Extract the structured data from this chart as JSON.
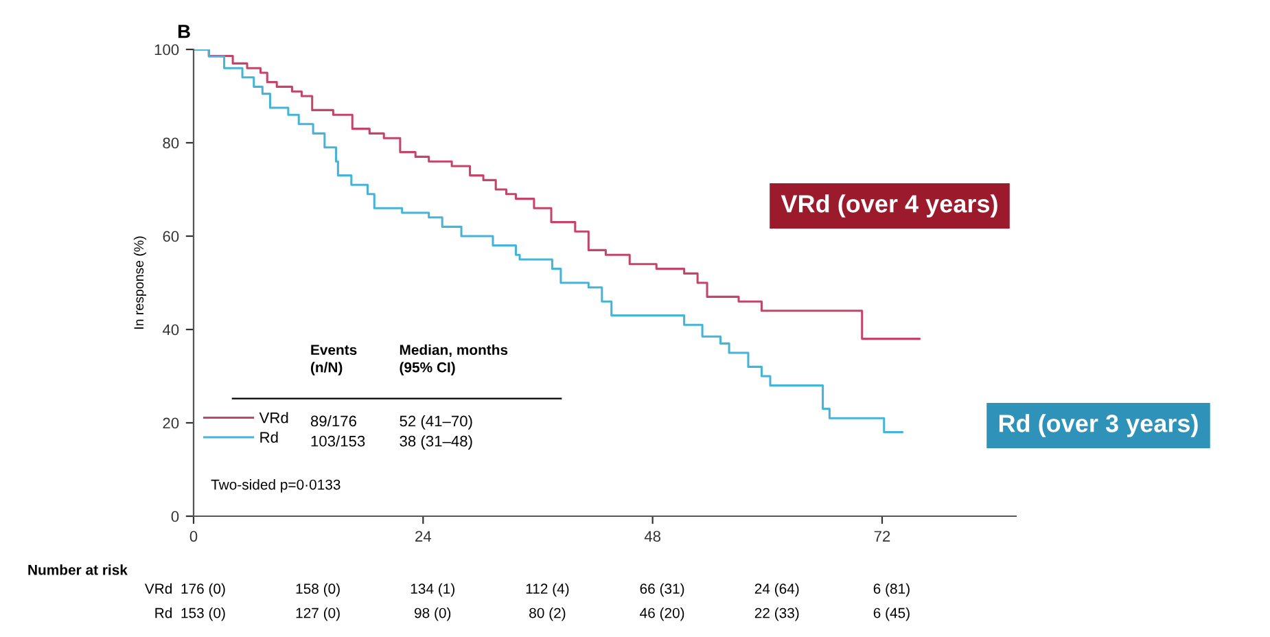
{
  "chart_data": {
    "type": "step",
    "title": "B",
    "ylabel": "In response (%)",
    "xlim": [
      0,
      86
    ],
    "xticks": [
      0,
      24,
      48,
      72
    ],
    "ylim": [
      0,
      100
    ],
    "yticks": [
      0,
      20,
      40,
      60,
      80,
      100
    ],
    "grid": false,
    "legend": "bottom left",
    "marker": "none",
    "line_style": "solid",
    "series": [
      {
        "name": "VRd",
        "color": "#c4456a",
        "x": [
          0,
          1.6,
          4.1,
          5.6,
          7,
          7.7,
          8.7,
          10.3,
          11.3,
          12.4,
          14.6,
          16.6,
          18.4,
          19.9,
          21.6,
          23.2,
          24.6,
          27,
          28.9,
          30.3,
          31.6,
          32.7,
          33.7,
          35.6,
          37.4,
          39.9,
          41.3,
          43.1,
          45.6,
          48.4,
          51.3,
          52.7,
          53.7,
          57,
          59.4,
          69.9,
          75.9
        ],
        "values": [
          100,
          98.6,
          97,
          96,
          95,
          93,
          92,
          91,
          90,
          87,
          86,
          83,
          82,
          81,
          78,
          77,
          76,
          75,
          73,
          72,
          70,
          69,
          68,
          66,
          63,
          61,
          57,
          56,
          54,
          53,
          52,
          50,
          47,
          46,
          44,
          38,
          38
        ]
      },
      {
        "name": "Rd",
        "color": "#45b4d6",
        "x": [
          0,
          1.6,
          3.2,
          5.1,
          6.3,
          7.2,
          8,
          9.9,
          11,
          12.5,
          13.7,
          14.9,
          15.1,
          16.5,
          18.2,
          18.9,
          21.8,
          24.6,
          26,
          28,
          31.3,
          33.7,
          34.1,
          37.5,
          38.4,
          41.3,
          42.7,
          43.7,
          51.3,
          53.2,
          55.1,
          56,
          58,
          59.4,
          60.3,
          65.8,
          66.5,
          72.2,
          74.1
        ],
        "values": [
          100,
          98.5,
          96,
          94,
          92,
          90.5,
          87.5,
          86,
          84,
          82,
          79,
          76,
          73,
          71,
          69,
          66,
          65,
          64,
          62,
          60,
          58,
          56,
          55,
          53,
          50,
          49,
          46,
          43,
          41,
          38.5,
          37,
          35,
          32,
          30,
          28,
          23,
          21,
          18,
          18
        ]
      }
    ],
    "annotations": [
      "VRd (over 4 years)",
      "Rd (over 3 years)",
      "Events\n(n/N)",
      "Median, months\n(95% CI)",
      "89/176",
      "52 (41–70)",
      "103/153",
      "38 (31–48)",
      "Two-sided p=0·0133",
      "Number at risk",
      "VRd",
      "176 (0)",
      "158 (0)",
      "134 (1)",
      "112 (4)",
      "66 (31)",
      "24 (64)",
      "6 (81)",
      "Rd",
      "153 (0)",
      "127 (0)",
      "98 (0)",
      "80 (2)",
      "46 (20)",
      "22 (33)",
      "6 (45)"
    ]
  }
}
